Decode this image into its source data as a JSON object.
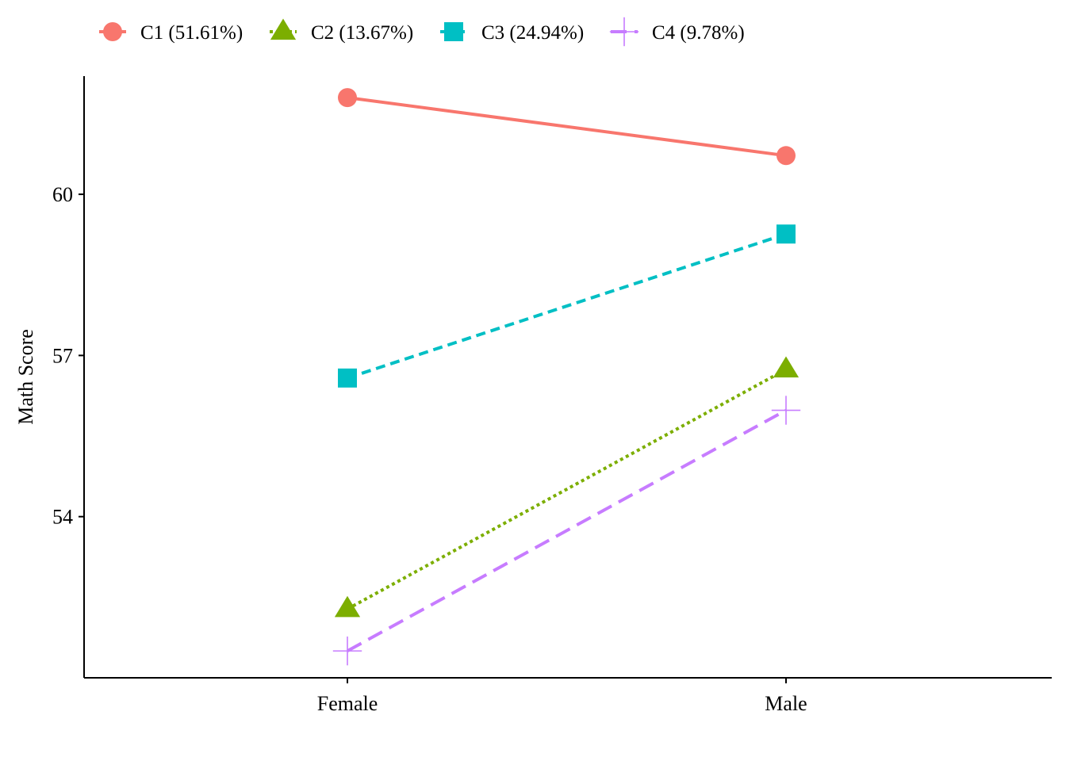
{
  "chart_data": {
    "type": "line",
    "title": "",
    "xlabel": "",
    "ylabel": "Math Score",
    "categories": [
      "Female",
      "Male"
    ],
    "y_ticks": [
      54,
      57,
      60
    ],
    "ylim": [
      51,
      62.2
    ],
    "grid": false,
    "legend_position": "top-left",
    "series": [
      {
        "name": "C1 (51.61%)",
        "values": [
          61.8,
          60.72
        ],
        "color": "#F8766D",
        "marker": "circle",
        "line_style": "solid"
      },
      {
        "name": "C2 (13.67%)",
        "values": [
          52.28,
          56.74
        ],
        "color": "#7CAE00",
        "marker": "triangle",
        "line_style": "dotted"
      },
      {
        "name": "C3 (24.94%)",
        "values": [
          56.58,
          59.26
        ],
        "color": "#00BFC4",
        "marker": "square",
        "line_style": "dashed"
      },
      {
        "name": "C4 (9.78%)",
        "values": [
          51.5,
          55.98
        ],
        "color": "#C77CFF",
        "marker": "plus",
        "line_style": "longdash"
      }
    ]
  }
}
